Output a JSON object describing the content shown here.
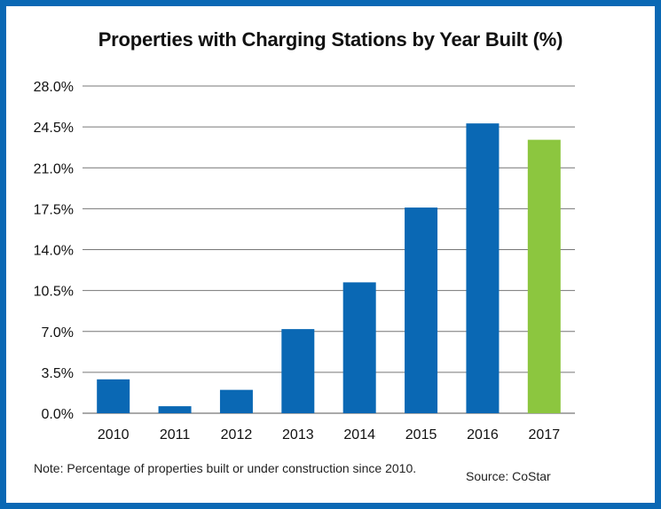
{
  "chart_data": {
    "type": "bar",
    "title": "Properties with Charging Stations by Year Built (%)",
    "categories": [
      "2010",
      "2011",
      "2012",
      "2013",
      "2014",
      "2015",
      "2016",
      "2017"
    ],
    "values": [
      2.9,
      0.6,
      2.0,
      7.2,
      11.2,
      17.6,
      24.8,
      23.4
    ],
    "bar_colors": [
      "#0a68b4",
      "#0a68b4",
      "#0a68b4",
      "#0a68b4",
      "#0a68b4",
      "#0a68b4",
      "#0a68b4",
      "#8cc63f"
    ],
    "ylim": [
      0,
      28
    ],
    "yticks": [
      "0.0%",
      "3.5%",
      "7.0%",
      "10.5%",
      "14.0%",
      "17.5%",
      "21.0%",
      "24.5%",
      "28.0%"
    ],
    "ytick_values": [
      0,
      3.5,
      7,
      10.5,
      14,
      17.5,
      21,
      24.5,
      28
    ],
    "grid": true,
    "xlabel": "",
    "ylabel": ""
  },
  "footer": {
    "note": "Note: Percentage of properties built or under construction since 2010.",
    "source": "Source: CoStar"
  },
  "colors": {
    "border": "#0a68b4",
    "accent_bar": "#8cc63f",
    "gridline": "#777777"
  }
}
